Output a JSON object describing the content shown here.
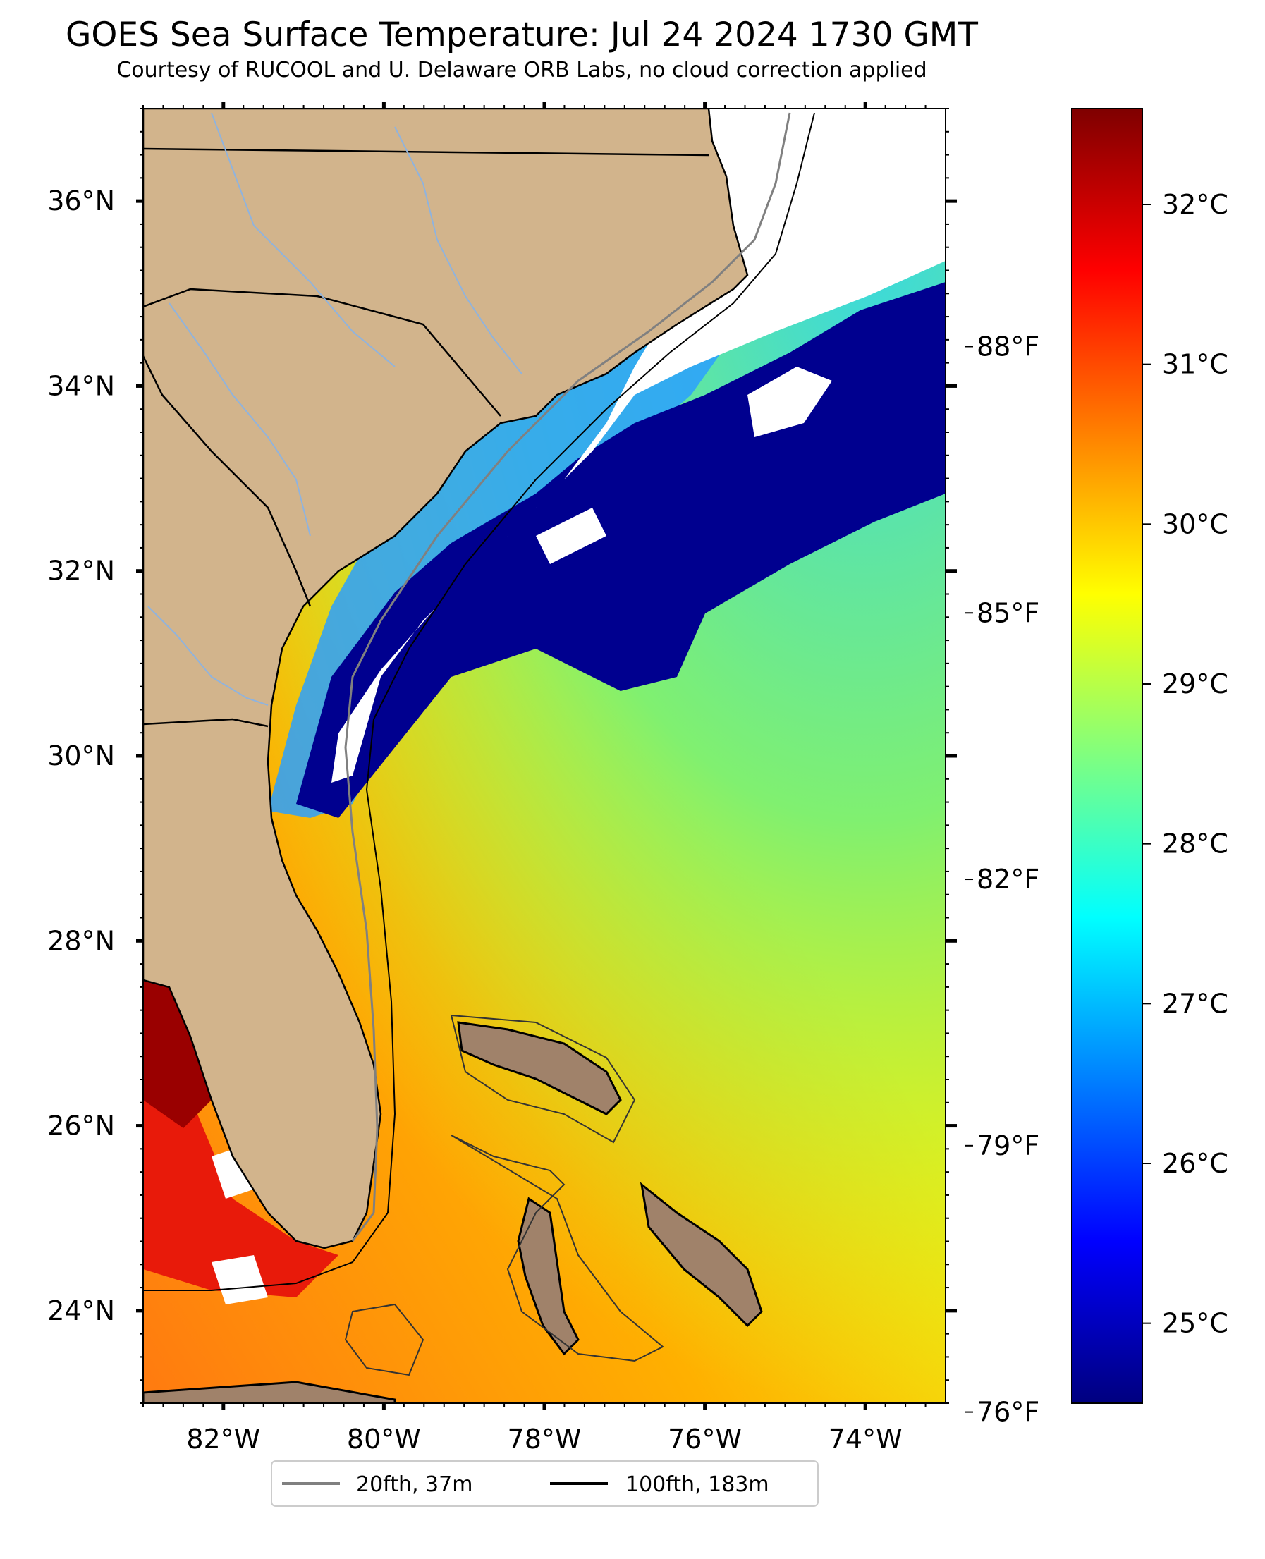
{
  "title": "GOES Sea Surface Temperature: Jul 24 2024 1730 GMT",
  "subtitle": "Courtesy of RUCOOL and U. Delaware ORB Labs, no cloud correction applied",
  "map": {
    "projection": "lat-lon",
    "lon_range": [
      -83.0,
      -73.0
    ],
    "lat_range": [
      23.0,
      37.0
    ],
    "lon_ticks": [
      {
        "value": -82,
        "label": "82°W"
      },
      {
        "value": -80,
        "label": "80°W"
      },
      {
        "value": -78,
        "label": "78°W"
      },
      {
        "value": -76,
        "label": "76°W"
      },
      {
        "value": -74,
        "label": "74°W"
      }
    ],
    "lat_ticks": [
      {
        "value": 24,
        "label": "24°N"
      },
      {
        "value": 26,
        "label": "26°N"
      },
      {
        "value": 28,
        "label": "28°N"
      },
      {
        "value": 30,
        "label": "30°N"
      },
      {
        "value": 32,
        "label": "32°N"
      },
      {
        "value": 34,
        "label": "34°N"
      },
      {
        "value": 36,
        "label": "36°N"
      }
    ],
    "fahrenheit_ticks": [
      {
        "value": 76,
        "label": "76°F"
      },
      {
        "value": 79,
        "label": "79°F"
      },
      {
        "value": 82,
        "label": "82°F"
      },
      {
        "value": 85,
        "label": "85°F"
      },
      {
        "value": 88,
        "label": "88°F"
      }
    ],
    "colors": {
      "land": "#d2b48c",
      "cloud_no_data": "#ffffff",
      "rivers": "#8fb3de",
      "contour_20fth": "#808080",
      "contour_100fth": "#000000"
    }
  },
  "colorbar": {
    "colormap": "jet",
    "range_c": [
      24.5,
      32.6
    ],
    "ticks": [
      {
        "value": 25,
        "label": "25°C"
      },
      {
        "value": 26,
        "label": "26°C"
      },
      {
        "value": 27,
        "label": "27°C"
      },
      {
        "value": 28,
        "label": "28°C"
      },
      {
        "value": 29,
        "label": "29°C"
      },
      {
        "value": 30,
        "label": "30°C"
      },
      {
        "value": 31,
        "label": "31°C"
      },
      {
        "value": 32,
        "label": "32°C"
      }
    ]
  },
  "legend": {
    "items": [
      {
        "label": "20fth, 37m",
        "color": "#808080"
      },
      {
        "label": "100fth, 183m",
        "color": "#000000"
      }
    ]
  }
}
